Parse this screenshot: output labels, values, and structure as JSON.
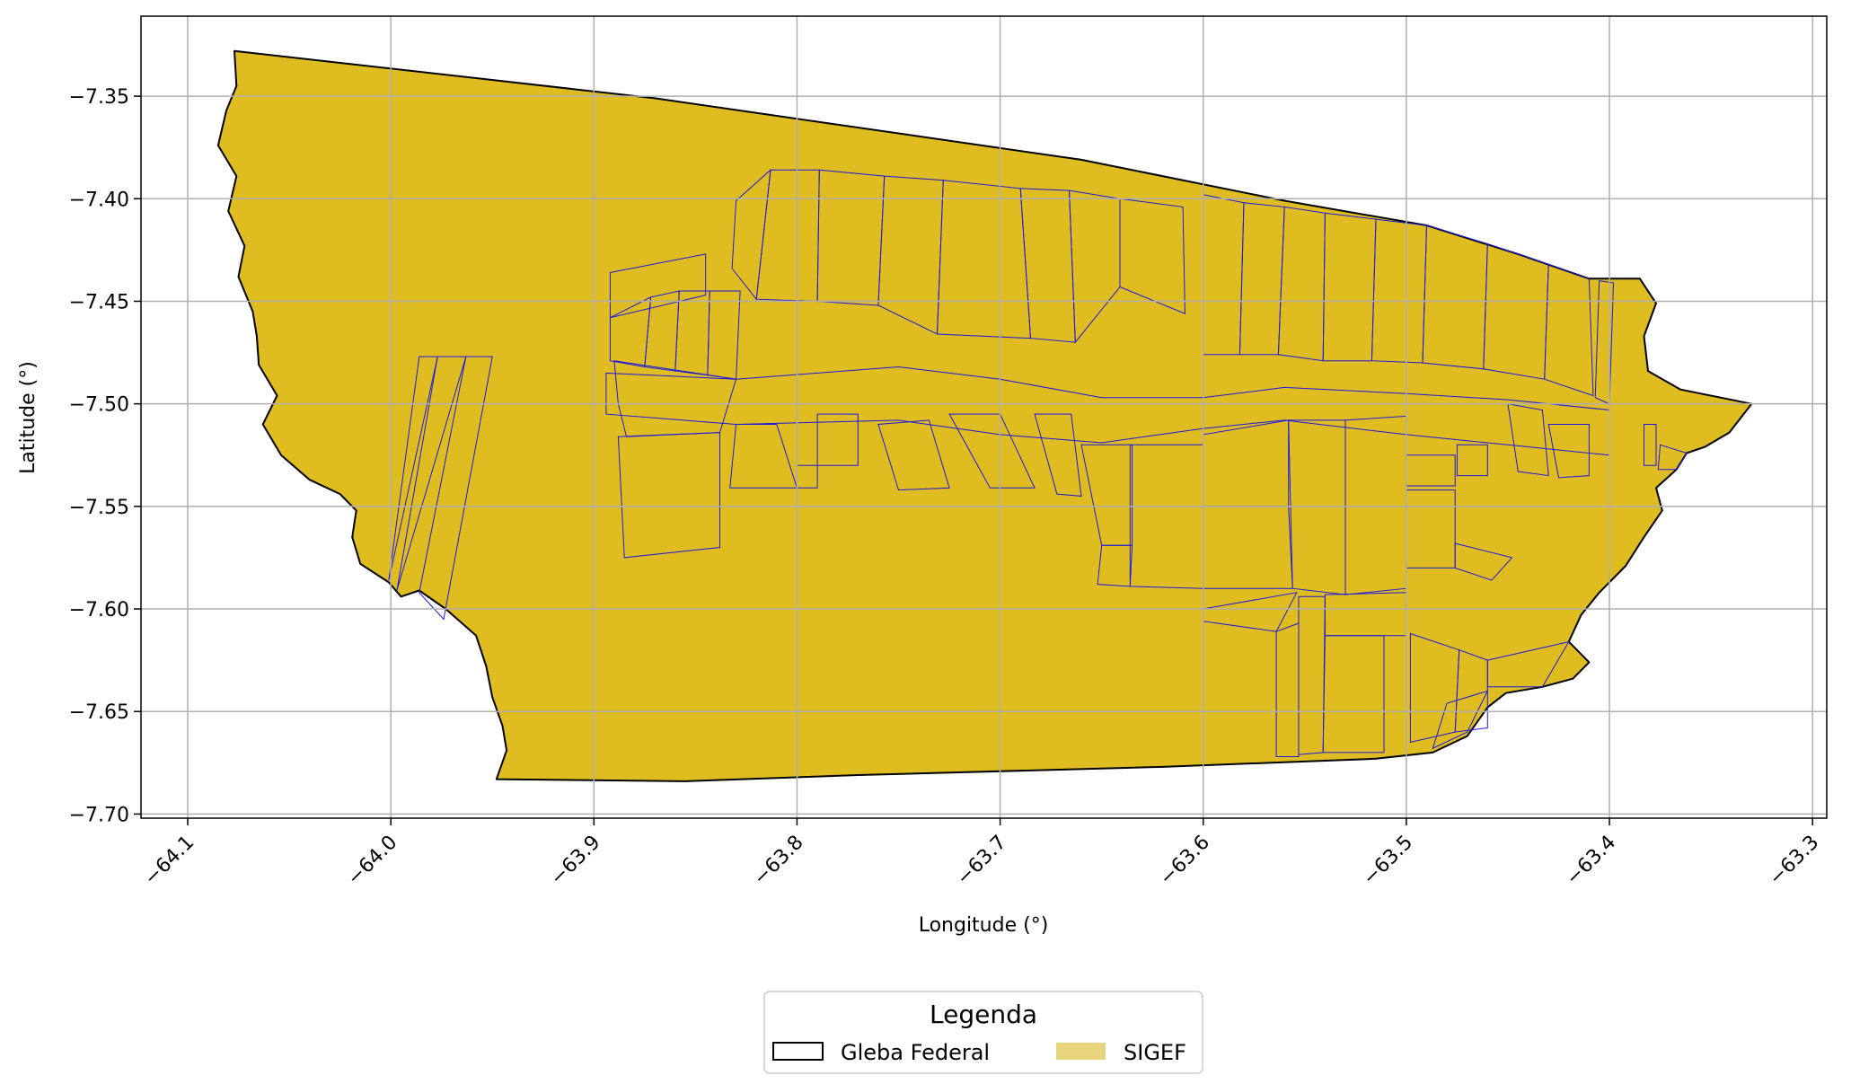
{
  "map": {
    "xlabel": "Longitude (°)",
    "ylabel": "Latitude (°)",
    "xlim": [
      -64.123,
      -63.293
    ],
    "ylim": [
      -7.702,
      -7.311
    ],
    "x_ticks": [
      {
        "value": -64.1,
        "label": "−64.1"
      },
      {
        "value": -64.0,
        "label": "−64.0"
      },
      {
        "value": -63.9,
        "label": "−63.9"
      },
      {
        "value": -63.8,
        "label": "−63.8"
      },
      {
        "value": -63.7,
        "label": "−63.7"
      },
      {
        "value": -63.6,
        "label": "−63.6"
      },
      {
        "value": -63.5,
        "label": "−63.5"
      },
      {
        "value": -63.4,
        "label": "−63.4"
      },
      {
        "value": -63.3,
        "label": "−63.3"
      }
    ],
    "y_ticks": [
      {
        "value": -7.35,
        "label": "−7.35"
      },
      {
        "value": -7.4,
        "label": "−7.40"
      },
      {
        "value": -7.45,
        "label": "−7.45"
      },
      {
        "value": -7.5,
        "label": "−7.50"
      },
      {
        "value": -7.55,
        "label": "−7.55"
      },
      {
        "value": -7.6,
        "label": "−7.60"
      },
      {
        "value": -7.65,
        "label": "−7.65"
      },
      {
        "value": -7.7,
        "label": "−7.70"
      }
    ],
    "grid": true,
    "gleba_outline": [
      [
        -64.077,
        -7.328
      ],
      [
        -63.87,
        -7.351
      ],
      [
        -63.66,
        -7.381
      ],
      [
        -63.56,
        -7.401
      ],
      [
        -63.49,
        -7.413
      ],
      [
        -63.445,
        -7.427
      ],
      [
        -63.41,
        -7.439
      ],
      [
        -63.385,
        -7.439
      ],
      [
        -63.377,
        -7.451
      ],
      [
        -63.383,
        -7.467
      ],
      [
        -63.381,
        -7.484
      ],
      [
        -63.365,
        -7.493
      ],
      [
        -63.33,
        -7.5
      ],
      [
        -63.341,
        -7.514
      ],
      [
        -63.353,
        -7.521
      ],
      [
        -63.362,
        -7.524
      ],
      [
        -63.367,
        -7.532
      ],
      [
        -63.377,
        -7.541
      ],
      [
        -63.374,
        -7.552
      ],
      [
        -63.383,
        -7.565
      ],
      [
        -63.392,
        -7.579
      ],
      [
        -63.405,
        -7.592
      ],
      [
        -63.414,
        -7.603
      ],
      [
        -63.42,
        -7.616
      ],
      [
        -63.41,
        -7.626
      ],
      [
        -63.418,
        -7.634
      ],
      [
        -63.433,
        -7.638
      ],
      [
        -63.451,
        -7.641
      ],
      [
        -63.46,
        -7.648
      ],
      [
        -63.47,
        -7.662
      ],
      [
        -63.487,
        -7.67
      ],
      [
        -63.515,
        -7.673
      ],
      [
        -63.62,
        -7.677
      ],
      [
        -63.77,
        -7.681
      ],
      [
        -63.855,
        -7.684
      ],
      [
        -63.948,
        -7.683
      ],
      [
        -63.943,
        -7.669
      ],
      [
        -63.945,
        -7.657
      ],
      [
        -63.95,
        -7.643
      ],
      [
        -63.953,
        -7.628
      ],
      [
        -63.958,
        -7.613
      ],
      [
        -63.973,
        -7.6
      ],
      [
        -63.986,
        -7.591
      ],
      [
        -63.995,
        -7.594
      ],
      [
        -64.001,
        -7.587
      ],
      [
        -64.015,
        -7.578
      ],
      [
        -64.019,
        -7.565
      ],
      [
        -64.017,
        -7.552
      ],
      [
        -64.025,
        -7.544
      ],
      [
        -64.04,
        -7.537
      ],
      [
        -64.054,
        -7.525
      ],
      [
        -64.063,
        -7.51
      ],
      [
        -64.056,
        -7.496
      ],
      [
        -64.065,
        -7.481
      ],
      [
        -64.066,
        -7.467
      ],
      [
        -64.068,
        -7.455
      ],
      [
        -64.075,
        -7.438
      ],
      [
        -64.072,
        -7.423
      ],
      [
        -64.08,
        -7.406
      ],
      [
        -64.076,
        -7.389
      ],
      [
        -64.085,
        -7.374
      ],
      [
        -64.081,
        -7.357
      ],
      [
        -64.076,
        -7.345
      ],
      [
        -64.077,
        -7.328
      ]
    ],
    "sigef_polygons": [
      [
        [
          -63.963,
          -7.477
        ],
        [
          -63.95,
          -7.477
        ],
        [
          -63.974,
          -7.605
        ],
        [
          -63.986,
          -7.592
        ]
      ],
      [
        [
          -63.963,
          -7.477
        ],
        [
          -63.977,
          -7.477
        ],
        [
          -63.997,
          -7.591
        ]
      ],
      [
        [
          -63.977,
          -7.477
        ],
        [
          -63.986,
          -7.477
        ],
        [
          -64.001,
          -7.586
        ]
      ],
      [
        [
          -63.892,
          -7.436
        ],
        [
          -63.845,
          -7.427
        ],
        [
          -63.845,
          -7.447
        ],
        [
          -63.892,
          -7.458
        ]
      ],
      [
        [
          -63.892,
          -7.458
        ],
        [
          -63.892,
          -7.479
        ],
        [
          -63.875,
          -7.482
        ],
        [
          -63.872,
          -7.448
        ]
      ],
      [
        [
          -63.872,
          -7.448
        ],
        [
          -63.875,
          -7.482
        ],
        [
          -63.86,
          -7.484
        ],
        [
          -63.858,
          -7.445
        ]
      ],
      [
        [
          -63.858,
          -7.445
        ],
        [
          -63.86,
          -7.484
        ],
        [
          -63.844,
          -7.486
        ],
        [
          -63.843,
          -7.445
        ]
      ],
      [
        [
          -63.843,
          -7.445
        ],
        [
          -63.844,
          -7.486
        ],
        [
          -63.83,
          -7.488
        ],
        [
          -63.828,
          -7.445
        ]
      ],
      [
        [
          -63.89,
          -7.479
        ],
        [
          -63.888,
          -7.5
        ],
        [
          -63.884,
          -7.516
        ],
        [
          -63.838,
          -7.514
        ],
        [
          -63.83,
          -7.488
        ]
      ],
      [
        [
          -63.888,
          -7.516
        ],
        [
          -63.885,
          -7.575
        ],
        [
          -63.838,
          -7.57
        ],
        [
          -63.838,
          -7.514
        ]
      ],
      [
        [
          -63.832,
          -7.434
        ],
        [
          -63.83,
          -7.401
        ],
        [
          -63.813,
          -7.386
        ],
        [
          -63.82,
          -7.449
        ]
      ],
      [
        [
          -63.813,
          -7.386
        ],
        [
          -63.789,
          -7.386
        ],
        [
          -63.79,
          -7.45
        ],
        [
          -63.82,
          -7.449
        ]
      ],
      [
        [
          -63.789,
          -7.386
        ],
        [
          -63.757,
          -7.389
        ],
        [
          -63.76,
          -7.452
        ],
        [
          -63.79,
          -7.45
        ]
      ],
      [
        [
          -63.757,
          -7.389
        ],
        [
          -63.728,
          -7.391
        ],
        [
          -63.731,
          -7.466
        ],
        [
          -63.76,
          -7.452
        ]
      ],
      [
        [
          -63.728,
          -7.391
        ],
        [
          -63.69,
          -7.395
        ],
        [
          -63.685,
          -7.468
        ],
        [
          -63.731,
          -7.466
        ]
      ],
      [
        [
          -63.69,
          -7.395
        ],
        [
          -63.666,
          -7.396
        ],
        [
          -63.663,
          -7.47
        ],
        [
          -63.685,
          -7.468
        ]
      ],
      [
        [
          -63.666,
          -7.396
        ],
        [
          -63.641,
          -7.4
        ],
        [
          -63.641,
          -7.443
        ],
        [
          -63.663,
          -7.47
        ]
      ],
      [
        [
          -63.641,
          -7.4
        ],
        [
          -63.61,
          -7.404
        ],
        [
          -63.609,
          -7.456
        ],
        [
          -63.641,
          -7.443
        ]
      ],
      [
        [
          -63.6,
          -7.398
        ],
        [
          -63.58,
          -7.402
        ],
        [
          -63.582,
          -7.476
        ],
        [
          -63.6,
          -7.476
        ]
      ],
      [
        [
          -63.58,
          -7.402
        ],
        [
          -63.56,
          -7.404
        ],
        [
          -63.563,
          -7.476
        ],
        [
          -63.582,
          -7.476
        ]
      ],
      [
        [
          -63.56,
          -7.404
        ],
        [
          -63.54,
          -7.407
        ],
        [
          -63.541,
          -7.479
        ],
        [
          -63.563,
          -7.476
        ]
      ],
      [
        [
          -63.54,
          -7.407
        ],
        [
          -63.515,
          -7.41
        ],
        [
          -63.517,
          -7.479
        ],
        [
          -63.541,
          -7.479
        ]
      ],
      [
        [
          -63.515,
          -7.41
        ],
        [
          -63.49,
          -7.413
        ],
        [
          -63.492,
          -7.48
        ],
        [
          -63.517,
          -7.479
        ]
      ],
      [
        [
          -63.49,
          -7.413
        ],
        [
          -63.46,
          -7.422
        ],
        [
          -63.462,
          -7.483
        ],
        [
          -63.492,
          -7.48
        ]
      ],
      [
        [
          -63.46,
          -7.422
        ],
        [
          -63.43,
          -7.432
        ],
        [
          -63.432,
          -7.488
        ],
        [
          -63.462,
          -7.483
        ]
      ],
      [
        [
          -63.43,
          -7.432
        ],
        [
          -63.41,
          -7.439
        ],
        [
          -63.408,
          -7.496
        ],
        [
          -63.432,
          -7.488
        ]
      ],
      [
        [
          -63.405,
          -7.44
        ],
        [
          -63.398,
          -7.441
        ],
        [
          -63.4,
          -7.5
        ],
        [
          -63.407,
          -7.497
        ]
      ],
      [
        [
          -63.894,
          -7.485
        ],
        [
          -63.83,
          -7.488
        ],
        [
          -63.75,
          -7.482
        ],
        [
          -63.7,
          -7.488
        ],
        [
          -63.65,
          -7.497
        ],
        [
          -63.6,
          -7.497
        ],
        [
          -63.56,
          -7.492
        ],
        [
          -63.5,
          -7.495
        ],
        [
          -63.45,
          -7.498
        ],
        [
          -63.4,
          -7.503
        ],
        [
          -63.4,
          -7.525
        ],
        [
          -63.45,
          -7.52
        ],
        [
          -63.5,
          -7.515
        ],
        [
          -63.56,
          -7.508
        ],
        [
          -63.6,
          -7.512
        ],
        [
          -63.65,
          -7.519
        ],
        [
          -63.7,
          -7.515
        ],
        [
          -63.75,
          -7.508
        ],
        [
          -63.83,
          -7.51
        ],
        [
          -63.894,
          -7.505
        ]
      ],
      [
        [
          -63.76,
          -7.51
        ],
        [
          -63.75,
          -7.542
        ],
        [
          -63.725,
          -7.541
        ],
        [
          -63.735,
          -7.508
        ]
      ],
      [
        [
          -63.725,
          -7.505
        ],
        [
          -63.705,
          -7.541
        ],
        [
          -63.683,
          -7.541
        ],
        [
          -63.7,
          -7.505
        ]
      ],
      [
        [
          -63.683,
          -7.505
        ],
        [
          -63.672,
          -7.544
        ],
        [
          -63.66,
          -7.545
        ],
        [
          -63.665,
          -7.505
        ]
      ],
      [
        [
          -63.79,
          -7.505
        ],
        [
          -63.79,
          -7.53
        ],
        [
          -63.77,
          -7.53
        ],
        [
          -63.77,
          -7.505
        ]
      ],
      [
        [
          -63.79,
          -7.53
        ],
        [
          -63.8,
          -7.53
        ],
        [
          -63.8,
          -7.541
        ],
        [
          -63.79,
          -7.541
        ]
      ],
      [
        [
          -63.81,
          -7.51
        ],
        [
          -63.8,
          -7.541
        ],
        [
          -63.833,
          -7.541
        ],
        [
          -63.83,
          -7.51
        ]
      ],
      [
        [
          -63.66,
          -7.52
        ],
        [
          -63.65,
          -7.569
        ],
        [
          -63.635,
          -7.569
        ],
        [
          -63.635,
          -7.52
        ]
      ],
      [
        [
          -63.65,
          -7.569
        ],
        [
          -63.635,
          -7.569
        ],
        [
          -63.636,
          -7.589
        ],
        [
          -63.652,
          -7.588
        ]
      ],
      [
        [
          -63.636,
          -7.52
        ],
        [
          -63.636,
          -7.589
        ],
        [
          -63.6,
          -7.59
        ],
        [
          -63.6,
          -7.52
        ]
      ],
      [
        [
          -63.6,
          -7.515
        ],
        [
          -63.6,
          -7.55
        ],
        [
          -63.558,
          -7.55
        ],
        [
          -63.558,
          -7.508
        ]
      ],
      [
        [
          -63.6,
          -7.55
        ],
        [
          -63.558,
          -7.55
        ],
        [
          -63.556,
          -7.59
        ],
        [
          -63.6,
          -7.59
        ]
      ],
      [
        [
          -63.558,
          -7.508
        ],
        [
          -63.556,
          -7.59
        ],
        [
          -63.53,
          -7.593
        ],
        [
          -63.53,
          -7.508
        ]
      ],
      [
        [
          -63.53,
          -7.508
        ],
        [
          -63.53,
          -7.593
        ],
        [
          -63.5,
          -7.59
        ],
        [
          -63.5,
          -7.506
        ]
      ],
      [
        [
          -63.6,
          -7.6
        ],
        [
          -63.6,
          -7.606
        ],
        [
          -63.564,
          -7.611
        ],
        [
          -63.554,
          -7.592
        ]
      ],
      [
        [
          -63.564,
          -7.611
        ],
        [
          -63.564,
          -7.672
        ],
        [
          -63.553,
          -7.672
        ],
        [
          -63.553,
          -7.607
        ]
      ],
      [
        [
          -63.553,
          -7.594
        ],
        [
          -63.54,
          -7.594
        ],
        [
          -63.541,
          -7.67
        ],
        [
          -63.553,
          -7.671
        ]
      ],
      [
        [
          -63.54,
          -7.613
        ],
        [
          -63.511,
          -7.613
        ],
        [
          -63.511,
          -7.67
        ],
        [
          -63.541,
          -7.67
        ]
      ],
      [
        [
          -63.54,
          -7.593
        ],
        [
          -63.5,
          -7.592
        ],
        [
          -63.5,
          -7.613
        ],
        [
          -63.54,
          -7.613
        ]
      ],
      [
        [
          -63.5,
          -7.542
        ],
        [
          -63.476,
          -7.542
        ],
        [
          -63.476,
          -7.58
        ],
        [
          -63.5,
          -7.58
        ]
      ],
      [
        [
          -63.476,
          -7.568
        ],
        [
          -63.448,
          -7.575
        ],
        [
          -63.458,
          -7.586
        ],
        [
          -63.476,
          -7.58
        ]
      ],
      [
        [
          -63.5,
          -7.525
        ],
        [
          -63.476,
          -7.525
        ],
        [
          -63.476,
          -7.54
        ],
        [
          -63.5,
          -7.54
        ]
      ],
      [
        [
          -63.475,
          -7.52
        ],
        [
          -63.46,
          -7.52
        ],
        [
          -63.46,
          -7.535
        ],
        [
          -63.475,
          -7.535
        ]
      ],
      [
        [
          -63.498,
          -7.612
        ],
        [
          -63.474,
          -7.62
        ],
        [
          -63.476,
          -7.66
        ],
        [
          -63.498,
          -7.665
        ]
      ],
      [
        [
          -63.474,
          -7.62
        ],
        [
          -63.46,
          -7.625
        ],
        [
          -63.46,
          -7.658
        ],
        [
          -63.476,
          -7.66
        ]
      ],
      [
        [
          -63.46,
          -7.625
        ],
        [
          -63.42,
          -7.616
        ],
        [
          -63.433,
          -7.638
        ],
        [
          -63.46,
          -7.638
        ]
      ],
      [
        [
          -63.46,
          -7.64
        ],
        [
          -63.47,
          -7.66
        ],
        [
          -63.487,
          -7.668
        ],
        [
          -63.48,
          -7.646
        ]
      ],
      [
        [
          -63.45,
          -7.5
        ],
        [
          -63.433,
          -7.503
        ],
        [
          -63.43,
          -7.535
        ],
        [
          -63.445,
          -7.533
        ]
      ],
      [
        [
          -63.43,
          -7.51
        ],
        [
          -63.41,
          -7.51
        ],
        [
          -63.41,
          -7.535
        ],
        [
          -63.425,
          -7.536
        ]
      ],
      [
        [
          -63.383,
          -7.51
        ],
        [
          -63.383,
          -7.53
        ],
        [
          -63.377,
          -7.53
        ],
        [
          -63.377,
          -7.51
        ]
      ],
      [
        [
          -63.375,
          -7.52
        ],
        [
          -63.362,
          -7.524
        ],
        [
          -63.367,
          -7.532
        ],
        [
          -63.376,
          -7.532
        ]
      ]
    ]
  },
  "legend": {
    "title": "Legenda",
    "items": [
      {
        "label": "Gleba Federal",
        "style": "outline",
        "edge_color": "#000000"
      },
      {
        "label": "SIGEF",
        "style": "fill",
        "fill_color": "#e8d47c"
      }
    ]
  },
  "colors": {
    "gleba_fill": "#dfbc20",
    "gleba_edge": "#000000",
    "sigef_edge": "#1a1adf",
    "grid": "#b0b0b0"
  }
}
